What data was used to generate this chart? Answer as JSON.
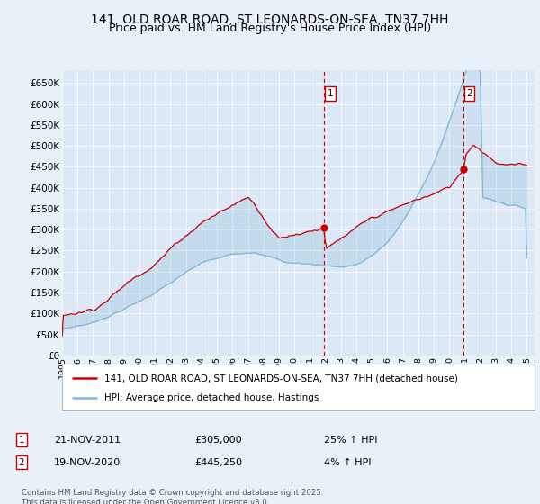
{
  "title": "141, OLD ROAR ROAD, ST LEONARDS-ON-SEA, TN37 7HH",
  "subtitle": "Price paid vs. HM Land Registry's House Price Index (HPI)",
  "ylim": [
    0,
    680000
  ],
  "yticks": [
    0,
    50000,
    100000,
    150000,
    200000,
    250000,
    300000,
    350000,
    400000,
    450000,
    500000,
    550000,
    600000,
    650000
  ],
  "background_color": "#e8f0f8",
  "plot_bg": "#dce8f5",
  "fill_color": "#c8dff0",
  "red_color": "#cc0000",
  "blue_color": "#7fb8d8",
  "marker1_year": 2011.9,
  "marker1_value": 305000,
  "marker2_year": 2020.9,
  "marker2_value": 445250,
  "legend_label_red": "141, OLD ROAR ROAD, ST LEONARDS-ON-SEA, TN37 7HH (detached house)",
  "legend_label_blue": "HPI: Average price, detached house, Hastings",
  "annotation1_date": "21-NOV-2011",
  "annotation1_price": "£305,000",
  "annotation1_hpi": "25% ↑ HPI",
  "annotation2_date": "19-NOV-2020",
  "annotation2_price": "£445,250",
  "annotation2_hpi": "4% ↑ HPI",
  "footer": "Contains HM Land Registry data © Crown copyright and database right 2025.\nThis data is licensed under the Open Government Licence v3.0.",
  "title_fontsize": 10,
  "subtitle_fontsize": 9
}
